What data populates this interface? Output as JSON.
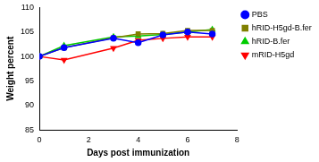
{
  "chart_data": {
    "type": "line",
    "x_label": "Days post immunization",
    "y_label": "Weight percent",
    "x": [
      0,
      1,
      3,
      4,
      5,
      6,
      7
    ],
    "series": [
      {
        "name": "PBS",
        "color": "#0000ff",
        "marker": "circle",
        "values": [
          100,
          101.8,
          103.7,
          102.8,
          104.4,
          105.0,
          104.6
        ]
      },
      {
        "name": "hRID-H5gd-B.fer",
        "color": "#808000",
        "marker": "square",
        "values": [
          100,
          101.8,
          103.8,
          104.6,
          104.7,
          105.3,
          105.3
        ]
      },
      {
        "name": "hRID-B.fer",
        "color": "#00cc00",
        "marker": "triangle",
        "values": [
          100,
          102.2,
          104.0,
          104.2,
          104.5,
          105.0,
          105.5
        ]
      },
      {
        "name": "mRID-H5gd",
        "color": "#ff0000",
        "marker": "triangle_down",
        "values": [
          100,
          99.3,
          101.7,
          103.3,
          103.7,
          104.0,
          104.0
        ]
      }
    ],
    "xlim": [
      0,
      8
    ],
    "xticks": [
      0,
      2,
      4,
      6,
      8
    ],
    "ylim": [
      85,
      110
    ],
    "yticks": [
      85,
      90,
      95,
      100,
      105,
      110
    ],
    "grid": false,
    "legend": "right"
  }
}
